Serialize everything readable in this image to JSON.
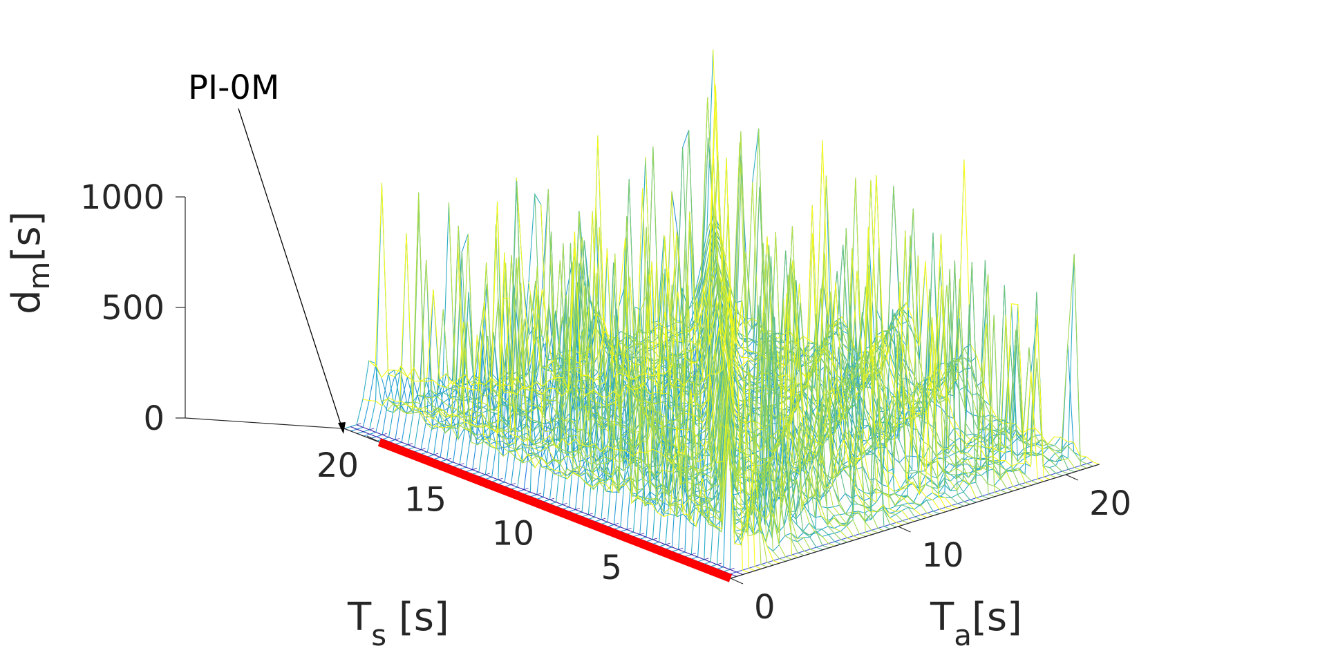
{
  "chart_data": {
    "type": "mesh",
    "title": "",
    "xlabel": {
      "main": "T",
      "sub": "s",
      "unit": " [s]"
    },
    "ylabel": {
      "main": "T",
      "sub": "a",
      "unit": "[s]"
    },
    "zlabel": {
      "main": "d",
      "sub": "m",
      "unit": "[s]"
    },
    "xlim": [
      0,
      22
    ],
    "ylim": [
      0,
      22
    ],
    "zlim": [
      0,
      1000
    ],
    "x_ticks": [
      5,
      10,
      15,
      20
    ],
    "y_ticks": [
      0,
      10,
      20
    ],
    "z_ticks": [
      0,
      500,
      1000
    ],
    "x_tick_labels": [
      "5",
      "10",
      "15",
      "20"
    ],
    "y_tick_labels": [
      "0",
      "10",
      "20"
    ],
    "z_tick_labels": [
      "0",
      "500",
      "1000"
    ],
    "colormap": "parula",
    "colors": {
      "low": "#3e26a8",
      "mid": "#2c9ad4",
      "high": "#f9fb15",
      "highlight": "#ff0000",
      "axis": "#262626"
    },
    "surface_description_peaks": [
      {
        "Ts": 0,
        "Ta": 1.5,
        "dm": 1100
      },
      {
        "Ts": 5,
        "Ta": 5,
        "dm": 1000
      },
      {
        "Ts": 10,
        "Ta": 10,
        "dm": 1000
      }
    ],
    "highlight_line": {
      "label": "PI-0M",
      "Ts_range": [
        0,
        20
      ],
      "Ta": 0,
      "dm": 0
    }
  },
  "annotation": {
    "text": "PI-0M"
  }
}
